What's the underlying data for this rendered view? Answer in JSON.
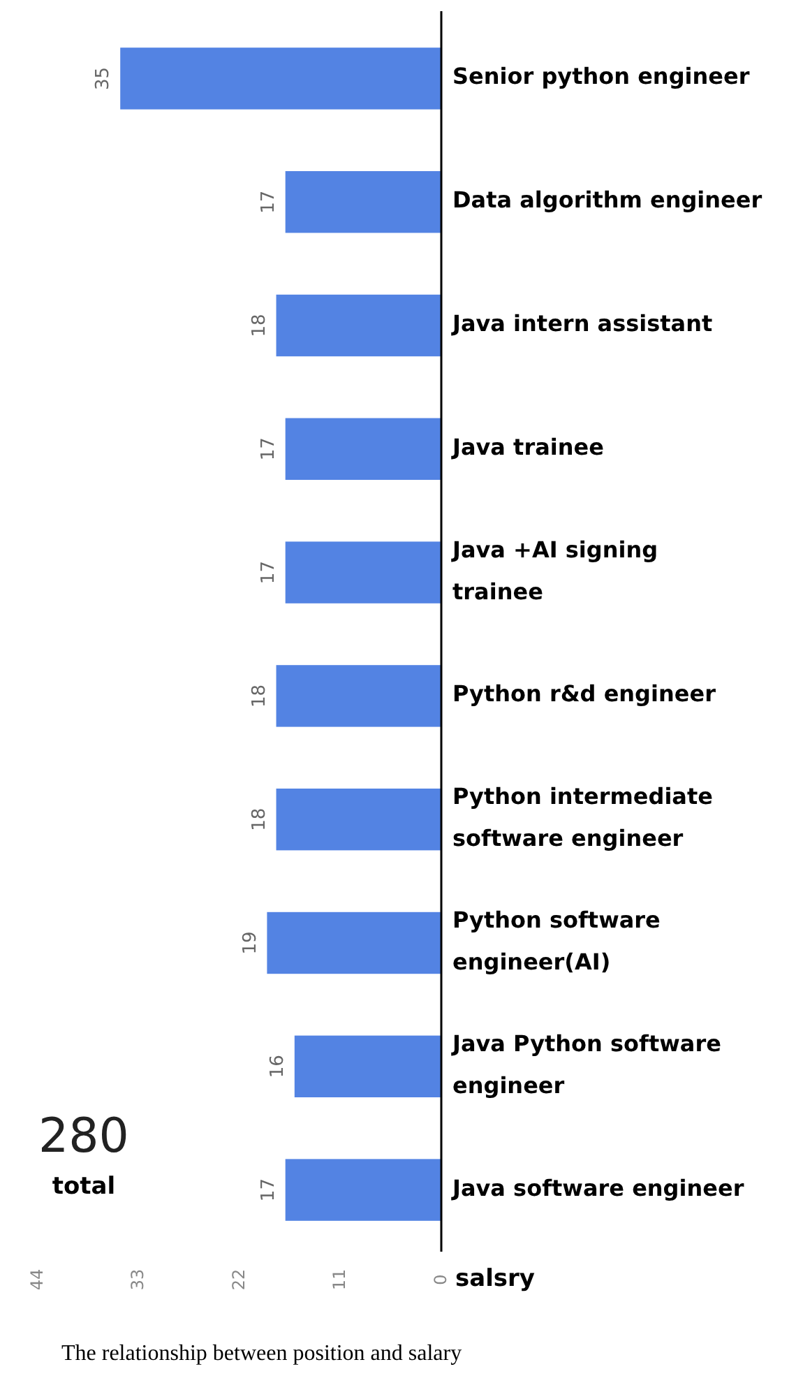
{
  "chart_data": {
    "type": "bar",
    "orientation": "horizontal",
    "xlabel": "salsry",
    "categories": [
      "Senior python engineer",
      "Data algorithm engineer",
      "Java intern assistant",
      "Java trainee",
      "Java +AI signing trainee",
      "Python r&d engineer",
      "Python intermediate software engineer",
      "Python software engineer(AI)",
      "Java Python software engineer",
      "Java software engineer"
    ],
    "values": [
      35,
      17,
      18,
      17,
      17,
      18,
      18,
      19,
      16,
      17
    ],
    "color": "#5383e3",
    "xlim": [
      44,
      0
    ],
    "xticks": [
      44,
      33,
      22,
      11,
      0
    ],
    "data_labels": true,
    "grid": false,
    "annotations": [
      "280",
      "total",
      "The relationship between position and salary"
    ]
  }
}
